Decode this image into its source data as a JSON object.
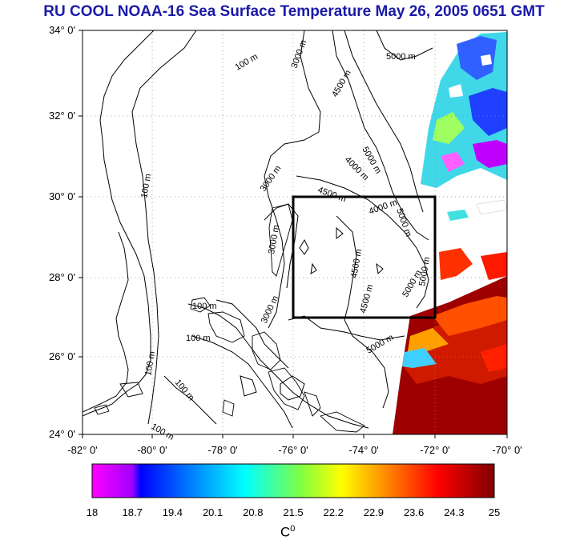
{
  "title": "RU COOL  NOAA-16 Sea Surface Temperature May 26, 2005 0651 GMT",
  "map": {
    "lat_labels": [
      "34° 0'",
      "32° 0'",
      "30° 0'",
      "28° 0'",
      "26° 0'",
      "24° 0'"
    ],
    "lon_labels": [
      "-82° 0'",
      "-80° 0'",
      "-78° 0'",
      "-76° 0'",
      "-74° 0'",
      "-72° 0'",
      "-70° 0'"
    ],
    "lat_range": [
      24,
      34
    ],
    "lon_range": [
      -82,
      -70
    ],
    "grid": "dotted",
    "contour_labels": [
      "100 m",
      "3000 m",
      "5000 m",
      "4500 m",
      "100 m",
      "4000 m",
      "5000 m",
      "3000 m",
      "4500 m",
      "4000 m",
      "5000 m",
      "3000 m",
      "4500 m",
      "5000 m",
      "5000 m",
      "3000 m",
      "100 m",
      "100 m",
      "100 m",
      "4500 m",
      "5000 m",
      "100 m",
      "100 m"
    ],
    "study_box": {
      "lon": [
        -76,
        -72
      ],
      "lat": [
        27,
        30
      ]
    }
  },
  "colorbar": {
    "ticks": [
      "18",
      "18.7",
      "19.4",
      "20.1",
      "20.8",
      "21.5",
      "22.2",
      "22.9",
      "23.6",
      "24.3",
      "25"
    ],
    "min": 18,
    "max": 25,
    "unit_base": "C",
    "unit_sup": "0",
    "colors": [
      "#ff00ff",
      "#0000ff",
      "#00a0ff",
      "#00ffff",
      "#80ff00",
      "#ffff00",
      "#ff8000",
      "#ff0000",
      "#800000"
    ]
  },
  "colors": {
    "title": "#1a1aa8",
    "warm_sst": "#9e0000",
    "cool_sst": "#40d0e0"
  }
}
